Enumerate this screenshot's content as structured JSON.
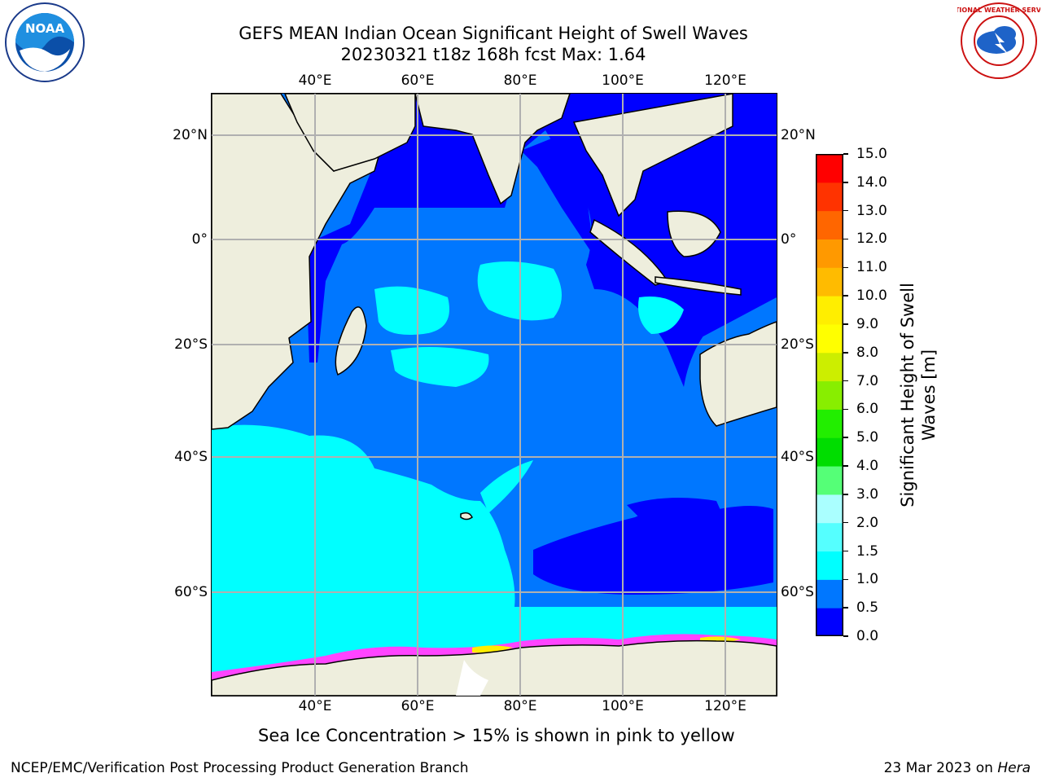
{
  "title": {
    "line1": "GEFS MEAN Indian Ocean Significant Height of Swell Waves",
    "line2": "20230321 t18z 168h fcst   Max: 1.64"
  },
  "logos": {
    "left": {
      "icon": "noaa-logo",
      "text": "NOAA"
    },
    "right": {
      "icon": "national-weather-service-logo",
      "text": "NATIONAL WEATHER SERVICE"
    }
  },
  "map": {
    "lon_ticks_top": [
      "40°E",
      "60°E",
      "80°E",
      "100°E",
      "120°E"
    ],
    "lon_ticks_bottom": [
      "40°E",
      "60°E",
      "80°E",
      "100°E",
      "120°E"
    ],
    "lat_ticks_left": [
      "20°N",
      "0°",
      "20°S",
      "40°S",
      "60°S"
    ],
    "lat_ticks_right": [
      "20°N",
      "0°",
      "20°S",
      "40°S",
      "60°S"
    ],
    "lon_values": [
      40,
      60,
      80,
      100,
      120
    ],
    "lat_values": [
      20,
      0,
      -20,
      -40,
      -60
    ],
    "colors": {
      "land": "#eeeedd",
      "ocean_low": "#0000ff",
      "ocean_mid": "#0077ff",
      "ocean_high": "#00ffff",
      "ice": "#ff44ff",
      "grid": "#b0b0b0"
    }
  },
  "colorbar": {
    "title_line1": "Significant Height of Swell",
    "title_line2": "Waves [m]",
    "labels": [
      "0.0",
      "0.5",
      "1.0",
      "1.5",
      "2.0",
      "3.0",
      "4.0",
      "5.0",
      "6.0",
      "7.0",
      "8.0",
      "9.0",
      "10.0",
      "11.0",
      "12.0",
      "13.0",
      "14.0",
      "15.0"
    ],
    "colors": [
      "#0000ff",
      "#0077ff",
      "#00ffff",
      "#55ffff",
      "#aaffff",
      "#55ff77",
      "#00dd00",
      "#22ee00",
      "#88ee00",
      "#ccee00",
      "#ffff00",
      "#ffee00",
      "#ffbb00",
      "#ff9900",
      "#ff6600",
      "#ff3300",
      "#ff0000"
    ]
  },
  "subtitle": "Sea Ice Concentration > 15% is shown in pink to yellow",
  "footer": {
    "left": "NCEP/EMC/Verification Post Processing Product Generation Branch",
    "right_prefix": "23 Mar 2023 on ",
    "right_host": "Hera"
  }
}
